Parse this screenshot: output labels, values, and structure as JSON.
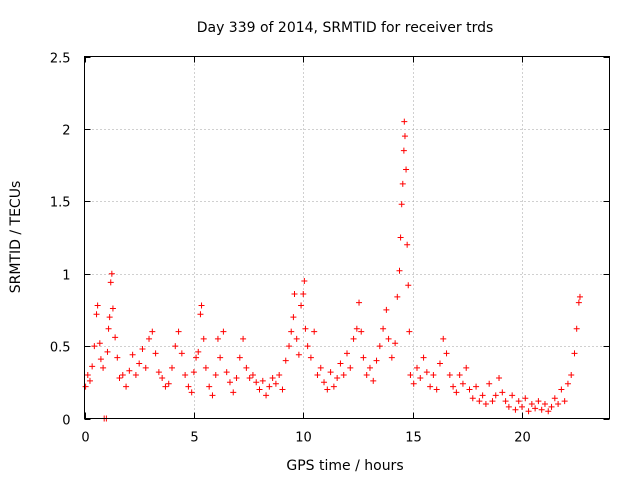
{
  "chart_data": {
    "type": "scatter",
    "title": "Day 339 of 2014, SRMTID for receiver trds",
    "xlabel": "GPS time / hours",
    "ylabel": "SRMTID / TECUs",
    "xlim": [
      0,
      24
    ],
    "ylim": [
      0,
      2.5
    ],
    "xticks": [
      0,
      5,
      10,
      15,
      20
    ],
    "xtick_labels": [
      "0",
      "5",
      "10",
      "15",
      "20"
    ],
    "yticks": [
      0,
      0.5,
      1,
      1.5,
      2,
      2.5
    ],
    "ytick_labels": [
      "0",
      "0.5",
      "1",
      "1.5",
      "2",
      "2.5"
    ],
    "grid": true,
    "marker": "+",
    "series": [
      {
        "name": "trds",
        "color": "#ff0000",
        "points": [
          [
            0.05,
            0.22
          ],
          [
            0.15,
            0.3
          ],
          [
            0.25,
            0.26
          ],
          [
            0.35,
            0.36
          ],
          [
            0.45,
            0.5
          ],
          [
            0.55,
            0.72
          ],
          [
            0.6,
            0.78
          ],
          [
            0.7,
            0.52
          ],
          [
            0.75,
            0.41
          ],
          [
            0.85,
            0.35
          ],
          [
            0.9,
            0.0
          ],
          [
            1.0,
            0.0
          ],
          [
            1.05,
            0.46
          ],
          [
            1.1,
            0.62
          ],
          [
            1.15,
            0.7
          ],
          [
            1.2,
            0.94
          ],
          [
            1.25,
            1.0
          ],
          [
            1.3,
            0.76
          ],
          [
            1.4,
            0.56
          ],
          [
            1.5,
            0.42
          ],
          [
            1.6,
            0.28
          ],
          [
            1.75,
            0.3
          ],
          [
            1.9,
            0.22
          ],
          [
            2.05,
            0.33
          ],
          [
            2.2,
            0.44
          ],
          [
            2.35,
            0.3
          ],
          [
            2.5,
            0.38
          ],
          [
            2.65,
            0.48
          ],
          [
            2.8,
            0.35
          ],
          [
            2.95,
            0.55
          ],
          [
            3.1,
            0.6
          ],
          [
            3.25,
            0.45
          ],
          [
            3.4,
            0.32
          ],
          [
            3.55,
            0.28
          ],
          [
            3.7,
            0.22
          ],
          [
            3.85,
            0.24
          ],
          [
            4.0,
            0.35
          ],
          [
            4.15,
            0.5
          ],
          [
            4.3,
            0.6
          ],
          [
            4.45,
            0.45
          ],
          [
            4.6,
            0.3
          ],
          [
            4.75,
            0.22
          ],
          [
            4.9,
            0.18
          ],
          [
            5.0,
            0.32
          ],
          [
            5.1,
            0.42
          ],
          [
            5.2,
            0.46
          ],
          [
            5.3,
            0.72
          ],
          [
            5.35,
            0.78
          ],
          [
            5.45,
            0.55
          ],
          [
            5.55,
            0.35
          ],
          [
            5.7,
            0.22
          ],
          [
            5.85,
            0.16
          ],
          [
            6.0,
            0.3
          ],
          [
            6.1,
            0.55
          ],
          [
            6.2,
            0.42
          ],
          [
            6.35,
            0.6
          ],
          [
            6.5,
            0.32
          ],
          [
            6.65,
            0.25
          ],
          [
            6.8,
            0.18
          ],
          [
            6.95,
            0.28
          ],
          [
            7.1,
            0.42
          ],
          [
            7.25,
            0.55
          ],
          [
            7.4,
            0.35
          ],
          [
            7.55,
            0.28
          ],
          [
            7.7,
            0.3
          ],
          [
            7.85,
            0.25
          ],
          [
            8.0,
            0.2
          ],
          [
            8.15,
            0.26
          ],
          [
            8.3,
            0.16
          ],
          [
            8.45,
            0.22
          ],
          [
            8.6,
            0.28
          ],
          [
            8.75,
            0.24
          ],
          [
            8.9,
            0.3
          ],
          [
            9.05,
            0.2
          ],
          [
            9.2,
            0.4
          ],
          [
            9.35,
            0.5
          ],
          [
            9.45,
            0.6
          ],
          [
            9.55,
            0.7
          ],
          [
            9.6,
            0.86
          ],
          [
            9.7,
            0.55
          ],
          [
            9.8,
            0.44
          ],
          [
            9.9,
            0.78
          ],
          [
            10.0,
            0.86
          ],
          [
            10.05,
            0.95
          ],
          [
            10.1,
            0.62
          ],
          [
            10.2,
            0.5
          ],
          [
            10.35,
            0.42
          ],
          [
            10.5,
            0.6
          ],
          [
            10.65,
            0.3
          ],
          [
            10.8,
            0.35
          ],
          [
            10.95,
            0.25
          ],
          [
            11.1,
            0.2
          ],
          [
            11.25,
            0.32
          ],
          [
            11.4,
            0.22
          ],
          [
            11.55,
            0.28
          ],
          [
            11.7,
            0.38
          ],
          [
            11.85,
            0.3
          ],
          [
            12.0,
            0.45
          ],
          [
            12.15,
            0.35
          ],
          [
            12.3,
            0.55
          ],
          [
            12.45,
            0.62
          ],
          [
            12.55,
            0.8
          ],
          [
            12.65,
            0.6
          ],
          [
            12.75,
            0.42
          ],
          [
            12.9,
            0.3
          ],
          [
            13.05,
            0.35
          ],
          [
            13.2,
            0.26
          ],
          [
            13.35,
            0.4
          ],
          [
            13.5,
            0.5
          ],
          [
            13.65,
            0.62
          ],
          [
            13.8,
            0.75
          ],
          [
            13.9,
            0.55
          ],
          [
            14.05,
            0.42
          ],
          [
            14.2,
            0.52
          ],
          [
            14.3,
            0.84
          ],
          [
            14.4,
            1.02
          ],
          [
            14.45,
            1.25
          ],
          [
            14.5,
            1.48
          ],
          [
            14.55,
            1.62
          ],
          [
            14.6,
            1.85
          ],
          [
            14.62,
            2.05
          ],
          [
            14.65,
            1.95
          ],
          [
            14.7,
            1.72
          ],
          [
            14.75,
            1.2
          ],
          [
            14.8,
            0.92
          ],
          [
            14.85,
            0.6
          ],
          [
            14.9,
            0.3
          ],
          [
            15.05,
            0.24
          ],
          [
            15.2,
            0.35
          ],
          [
            15.35,
            0.28
          ],
          [
            15.5,
            0.42
          ],
          [
            15.65,
            0.32
          ],
          [
            15.8,
            0.22
          ],
          [
            15.95,
            0.3
          ],
          [
            16.1,
            0.2
          ],
          [
            16.25,
            0.38
          ],
          [
            16.4,
            0.55
          ],
          [
            16.55,
            0.45
          ],
          [
            16.7,
            0.3
          ],
          [
            16.85,
            0.22
          ],
          [
            17.0,
            0.18
          ],
          [
            17.15,
            0.3
          ],
          [
            17.3,
            0.24
          ],
          [
            17.45,
            0.35
          ],
          [
            17.6,
            0.2
          ],
          [
            17.75,
            0.14
          ],
          [
            17.9,
            0.22
          ],
          [
            18.05,
            0.12
          ],
          [
            18.2,
            0.16
          ],
          [
            18.35,
            0.1
          ],
          [
            18.5,
            0.24
          ],
          [
            18.65,
            0.12
          ],
          [
            18.8,
            0.16
          ],
          [
            18.95,
            0.28
          ],
          [
            19.1,
            0.18
          ],
          [
            19.25,
            0.12
          ],
          [
            19.4,
            0.08
          ],
          [
            19.55,
            0.16
          ],
          [
            19.7,
            0.06
          ],
          [
            19.85,
            0.12
          ],
          [
            20.0,
            0.08
          ],
          [
            20.15,
            0.14
          ],
          [
            20.3,
            0.05
          ],
          [
            20.45,
            0.1
          ],
          [
            20.6,
            0.07
          ],
          [
            20.75,
            0.12
          ],
          [
            20.9,
            0.06
          ],
          [
            21.05,
            0.1
          ],
          [
            21.2,
            0.05
          ],
          [
            21.35,
            0.08
          ],
          [
            21.5,
            0.14
          ],
          [
            21.65,
            0.1
          ],
          [
            21.8,
            0.2
          ],
          [
            21.95,
            0.12
          ],
          [
            22.1,
            0.24
          ],
          [
            22.25,
            0.3
          ],
          [
            22.4,
            0.45
          ],
          [
            22.5,
            0.62
          ],
          [
            22.6,
            0.8
          ],
          [
            22.65,
            0.84
          ]
        ]
      }
    ]
  }
}
